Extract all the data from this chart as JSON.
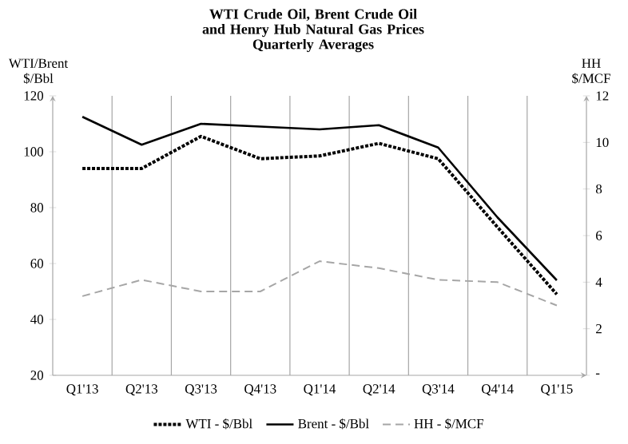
{
  "chart_data": {
    "type": "line",
    "title": "WTI Crude Oil, Brent Crude Oil and Henry Hub Natural Gas Prices",
    "subtitle": "Quarterly Averages",
    "ylabel": "WTI/Brent $/Bbl",
    "y2label": "HH $/MCF",
    "categories": [
      "Q1'13",
      "Q2'13",
      "Q3'13",
      "Q4'13",
      "Q1'14",
      "Q2'14",
      "Q3'14",
      "Q4'14",
      "Q1'15"
    ],
    "series": [
      {
        "name": "WTI - $/Bbl",
        "color": "#000000",
        "line_style": "dotted",
        "values": [
          94,
          94,
          105.5,
          97.5,
          98.5,
          103,
          97.5,
          73,
          49
        ]
      },
      {
        "name": "Brent - $/Bbl",
        "color": "#000000",
        "line_style": "solid",
        "values": [
          112.5,
          102.5,
          110,
          109,
          108,
          109.5,
          101.5,
          76.5,
          54
        ]
      },
      {
        "name": "HH - $/MCF",
        "color": "#a6a6a6",
        "line_style": "dashed",
        "axis": "y2",
        "values": [
          3.4,
          4.1,
          3.6,
          3.6,
          4.9,
          4.6,
          4.1,
          4.0,
          3.0
        ]
      }
    ],
    "ylim": [
      20,
      120
    ],
    "yticks": [
      20,
      40,
      60,
      80,
      100,
      120
    ],
    "y2lim": [
      0,
      12
    ],
    "y2ticks": [
      {
        "value": 0,
        "label": "-"
      },
      2,
      4,
      6,
      8,
      10,
      12
    ],
    "grid": "x",
    "legend": "bottom",
    "marker": "none"
  }
}
